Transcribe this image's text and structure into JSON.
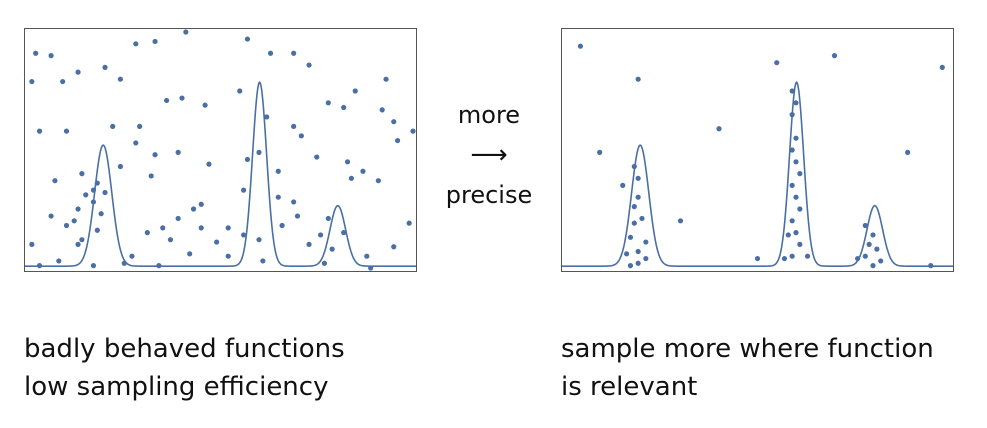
{
  "arrow": {
    "top_text": "more",
    "glyph": "⟶",
    "bottom_text": "precise"
  },
  "captions": {
    "left": [
      "badly behaved functions",
      "low sampling efficiency"
    ],
    "right": [
      "sample more where function",
      "is relevant"
    ]
  },
  "colors": {
    "curve": "#4a6fa5",
    "points": "#4a6fa5",
    "frame": "#555555"
  },
  "function_peaks": [
    {
      "center": 0.2,
      "width": 0.022,
      "height": 0.5
    },
    {
      "center": 0.6,
      "width": 0.018,
      "height": 0.76
    },
    {
      "center": 0.8,
      "width": 0.02,
      "height": 0.25
    }
  ],
  "panels": {
    "left": {
      "label": "uniform-sampling",
      "points": [
        [
          0.02,
          0.91
        ],
        [
          0.06,
          0.9
        ],
        [
          0.13,
          0.83
        ],
        [
          0.2,
          0.85
        ],
        [
          0.24,
          0.8
        ],
        [
          0.28,
          0.95
        ],
        [
          0.33,
          0.96
        ],
        [
          0.41,
          1.0
        ],
        [
          0.57,
          0.97
        ],
        [
          0.63,
          0.91
        ],
        [
          0.69,
          0.91
        ],
        [
          0.73,
          0.86
        ],
        [
          0.85,
          0.75
        ],
        [
          0.93,
          0.8
        ],
        [
          0.01,
          0.79
        ],
        [
          0.09,
          0.79
        ],
        [
          0.29,
          0.6
        ],
        [
          0.36,
          0.71
        ],
        [
          0.4,
          0.72
        ],
        [
          0.46,
          0.69
        ],
        [
          0.55,
          0.75
        ],
        [
          0.62,
          0.64
        ],
        [
          0.69,
          0.6
        ],
        [
          0.78,
          0.7
        ],
        [
          0.82,
          0.68
        ],
        [
          0.92,
          0.67
        ],
        [
          0.95,
          0.62
        ],
        [
          1.0,
          0.58
        ],
        [
          0.03,
          0.58
        ],
        [
          0.1,
          0.58
        ],
        [
          0.22,
          0.6
        ],
        [
          0.28,
          0.53
        ],
        [
          0.33,
          0.48
        ],
        [
          0.39,
          0.49
        ],
        [
          0.47,
          0.44
        ],
        [
          0.57,
          0.46
        ],
        [
          0.6,
          0.49
        ],
        [
          0.65,
          0.41
        ],
        [
          0.71,
          0.56
        ],
        [
          0.75,
          0.47
        ],
        [
          0.83,
          0.45
        ],
        [
          0.87,
          0.41
        ],
        [
          0.96,
          0.54
        ],
        [
          0.07,
          0.37
        ],
        [
          0.14,
          0.4
        ],
        [
          0.18,
          0.36
        ],
        [
          0.24,
          0.43
        ],
        [
          0.32,
          0.39
        ],
        [
          0.45,
          0.27
        ],
        [
          0.56,
          0.33
        ],
        [
          0.65,
          0.3
        ],
        [
          0.69,
          0.28
        ],
        [
          0.78,
          0.21
        ],
        [
          0.84,
          0.38
        ],
        [
          0.91,
          0.37
        ],
        [
          0.15,
          0.31
        ],
        [
          0.17,
          0.33
        ],
        [
          0.2,
          0.32
        ],
        [
          0.12,
          0.2
        ],
        [
          0.13,
          0.25
        ],
        [
          0.17,
          0.28
        ],
        [
          0.19,
          0.23
        ],
        [
          0.06,
          0.22
        ],
        [
          0.1,
          0.18
        ],
        [
          0.14,
          0.12
        ],
        [
          0.18,
          0.16
        ],
        [
          0.27,
          0.05
        ],
        [
          0.31,
          0.15
        ],
        [
          0.35,
          0.17
        ],
        [
          0.37,
          0.12
        ],
        [
          0.39,
          0.21
        ],
        [
          0.43,
          0.25
        ],
        [
          0.45,
          0.17
        ],
        [
          0.49,
          0.11
        ],
        [
          0.52,
          0.17
        ],
        [
          0.56,
          0.14
        ],
        [
          0.6,
          0.12
        ],
        [
          0.66,
          0.18
        ],
        [
          0.7,
          0.22
        ],
        [
          0.73,
          0.1
        ],
        [
          0.76,
          0.14
        ],
        [
          0.79,
          0.08
        ],
        [
          0.82,
          0.15
        ],
        [
          0.88,
          0.05
        ],
        [
          0.95,
          0.09
        ],
        [
          0.99,
          0.19
        ],
        [
          0.01,
          0.1
        ],
        [
          0.03,
          0.01
        ],
        [
          0.08,
          0.03
        ],
        [
          0.13,
          0.1
        ],
        [
          0.17,
          0.01
        ],
        [
          0.25,
          0.02
        ],
        [
          0.34,
          0.01
        ],
        [
          0.42,
          0.06
        ],
        [
          0.52,
          0.05
        ],
        [
          0.61,
          0.03
        ],
        [
          0.77,
          0.02
        ],
        [
          0.89,
          0.0
        ]
      ]
    },
    "right": {
      "label": "adaptive-sampling",
      "points": [
        [
          0.04,
          0.94
        ],
        [
          0.19,
          0.8
        ],
        [
          0.55,
          0.87
        ],
        [
          0.7,
          0.9
        ],
        [
          0.98,
          0.85
        ],
        [
          0.4,
          0.59
        ],
        [
          0.09,
          0.49
        ],
        [
          0.89,
          0.49
        ],
        [
          0.3,
          0.2
        ],
        [
          0.15,
          0.35
        ],
        [
          0.18,
          0.43
        ],
        [
          0.19,
          0.38
        ],
        [
          0.19,
          0.3
        ],
        [
          0.18,
          0.26
        ],
        [
          0.18,
          0.19
        ],
        [
          0.2,
          0.21
        ],
        [
          0.17,
          0.13
        ],
        [
          0.21,
          0.11
        ],
        [
          0.19,
          0.07
        ],
        [
          0.16,
          0.06
        ],
        [
          0.21,
          0.04
        ],
        [
          0.19,
          0.02
        ],
        [
          0.17,
          0.01
        ],
        [
          0.59,
          0.75
        ],
        [
          0.6,
          0.7
        ],
        [
          0.59,
          0.65
        ],
        [
          0.6,
          0.55
        ],
        [
          0.59,
          0.5
        ],
        [
          0.6,
          0.45
        ],
        [
          0.61,
          0.4
        ],
        [
          0.59,
          0.35
        ],
        [
          0.6,
          0.3
        ],
        [
          0.61,
          0.25
        ],
        [
          0.59,
          0.2
        ],
        [
          0.6,
          0.15
        ],
        [
          0.58,
          0.14
        ],
        [
          0.61,
          0.1
        ],
        [
          0.59,
          0.05
        ],
        [
          0.63,
          0.05
        ],
        [
          0.57,
          0.04
        ],
        [
          0.78,
          0.18
        ],
        [
          0.8,
          0.14
        ],
        [
          0.79,
          0.1
        ],
        [
          0.81,
          0.08
        ],
        [
          0.78,
          0.05
        ],
        [
          0.82,
          0.03
        ],
        [
          0.8,
          0.01
        ],
        [
          0.76,
          0.04
        ],
        [
          0.5,
          0.04
        ],
        [
          0.95,
          0.01
        ]
      ]
    }
  }
}
